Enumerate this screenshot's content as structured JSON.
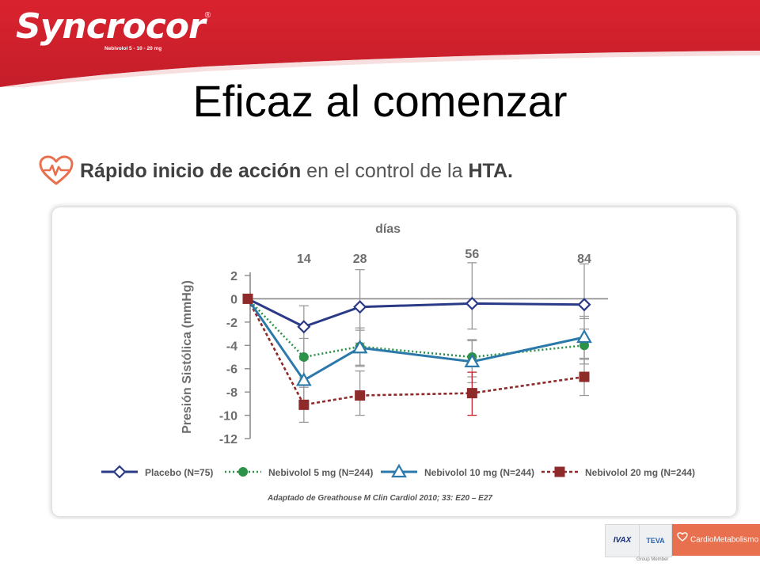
{
  "brand": {
    "name": "Syncrocor",
    "registered": "®",
    "tagline": "Nebivolol 5 - 10 - 20 mg"
  },
  "slide": {
    "title": "Eficaz al comenzar",
    "subtitle_bold_1": "Rápido inicio de acción",
    "subtitle_normal": " en el control de la ",
    "subtitle_bold_2": "HTA."
  },
  "colors": {
    "header_red": "#d62633",
    "accent_orange": "#e9704e",
    "placebo": "#2a3a86",
    "nebivolol_5": "#2b9247",
    "nebivolol_10": "#2b79aa",
    "nebivolol_20": "#8e2a2a"
  },
  "chart_data": {
    "type": "line",
    "xlabel": "días",
    "ylabel": "Presión Sistólica (mmHg)",
    "x": [
      0,
      14,
      28,
      56,
      84
    ],
    "x_tick_labels": [
      "14",
      "28",
      "56",
      "84"
    ],
    "ylim": [
      -12,
      2
    ],
    "y_ticks": [
      2,
      0,
      -2,
      -4,
      -6,
      -8,
      -10,
      -12
    ],
    "grid": false,
    "legend_position": "bottom",
    "series": [
      {
        "name": "Placebo (N=75)",
        "marker": "diamond-open",
        "line": "solid",
        "values": [
          0,
          -2.4,
          -0.7,
          -0.4,
          -0.5
        ],
        "error_low": [
          0,
          -5.2,
          -3.8,
          -2.6,
          -1.7
        ],
        "error_high": [
          0,
          -0.6,
          2.5,
          3.1,
          3.0
        ]
      },
      {
        "name": "Nebivolol 5 mg (N=244)",
        "marker": "circle-filled",
        "line": "dotted",
        "values": [
          0,
          -5.0,
          -4.1,
          -5.0,
          -4.0
        ],
        "error_low": [
          0,
          -6.8,
          -5.8,
          -6.7,
          -5.6
        ],
        "error_high": [
          0,
          -3.4,
          -2.7,
          -3.6,
          -2.6
        ]
      },
      {
        "name": "Nebivolol 10 mg (N=244)",
        "marker": "triangle-open",
        "line": "solid",
        "values": [
          0,
          -7.0,
          -4.2,
          -5.4,
          -3.3
        ],
        "error_low": [
          0,
          -8.8,
          -5.7,
          -7.2,
          -5.1
        ],
        "error_high": [
          0,
          -5.0,
          -2.5,
          -3.5,
          -1.5
        ]
      },
      {
        "name": "Nebivolol 20 mg (N=244)",
        "marker": "square-filled",
        "line": "dashed",
        "values": [
          0,
          -9.1,
          -8.3,
          -8.1,
          -6.7
        ],
        "error_low": [
          0,
          -10.6,
          -10.0,
          -10.0,
          -8.3
        ],
        "error_high": [
          0,
          -7.6,
          -6.2,
          -6.3,
          -5.2
        ]
      }
    ]
  },
  "source_note": "Adaptado de Greathouse M Clin Cardiol 2010; 33: E20 – E27",
  "footer": {
    "ivax": "IVAX",
    "teva": "TEVA",
    "cardio": "CardioMetabolismo",
    "group_member": "Group Member"
  }
}
